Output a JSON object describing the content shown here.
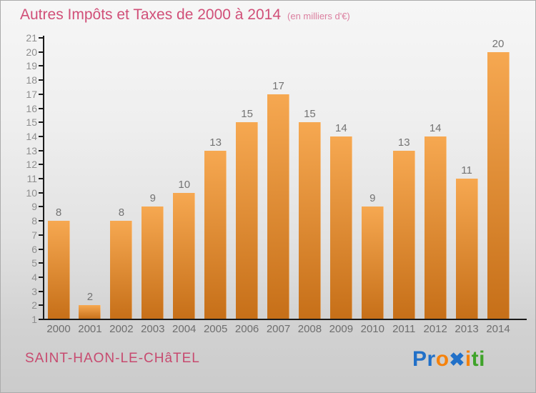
{
  "header": {
    "title": "Autres Impôts et Taxes de 2000 à 2014",
    "subtitle": "(en milliers d'€)"
  },
  "footer": {
    "place": "SAINT-HAON-LE-CHâTEL",
    "logo_word": "Proxiti"
  },
  "logo_letters": [
    {
      "ch": "P",
      "color": "#2170C8",
      "emphasis": false
    },
    {
      "ch": "r",
      "color": "#2170C8",
      "emphasis": false
    },
    {
      "ch": "o",
      "color": "#F5820C",
      "emphasis": false
    },
    {
      "ch": "x",
      "color": "#2170C8",
      "emphasis": true
    },
    {
      "ch": "i",
      "color": "#F5820C",
      "emphasis": false
    },
    {
      "ch": "t",
      "color": "#3FA32A",
      "emphasis": false
    },
    {
      "ch": "i",
      "color": "#3FA32A",
      "emphasis": false
    }
  ],
  "colors": {
    "title": "#D14F78",
    "subtitle": "#DB7F9F",
    "place": "#C74A6F",
    "axis": "#1A1A1A",
    "tick_label": "#8E8E8E",
    "value_label": "#737373",
    "year_label": "#6E6E6E",
    "bar_top": "#F6A851",
    "bar_bottom": "#C66F18"
  },
  "chart_data": {
    "type": "bar",
    "title": "Autres Impôts et Taxes de 2000 à 2014",
    "subtitle": "(en milliers d'€)",
    "categories": [
      "2000",
      "2001",
      "2002",
      "2003",
      "2004",
      "2005",
      "2006",
      "2007",
      "2008",
      "2009",
      "2010",
      "2011",
      "2012",
      "2013",
      "2014"
    ],
    "values": [
      8,
      2,
      8,
      9,
      10,
      13,
      15,
      17,
      15,
      14,
      9,
      13,
      14,
      11,
      20
    ],
    "xlabel": "",
    "ylabel": "",
    "ylim": [
      1,
      21
    ],
    "ytick_step": 1,
    "grid": false,
    "legend": "none",
    "value_labels_shown": true
  }
}
